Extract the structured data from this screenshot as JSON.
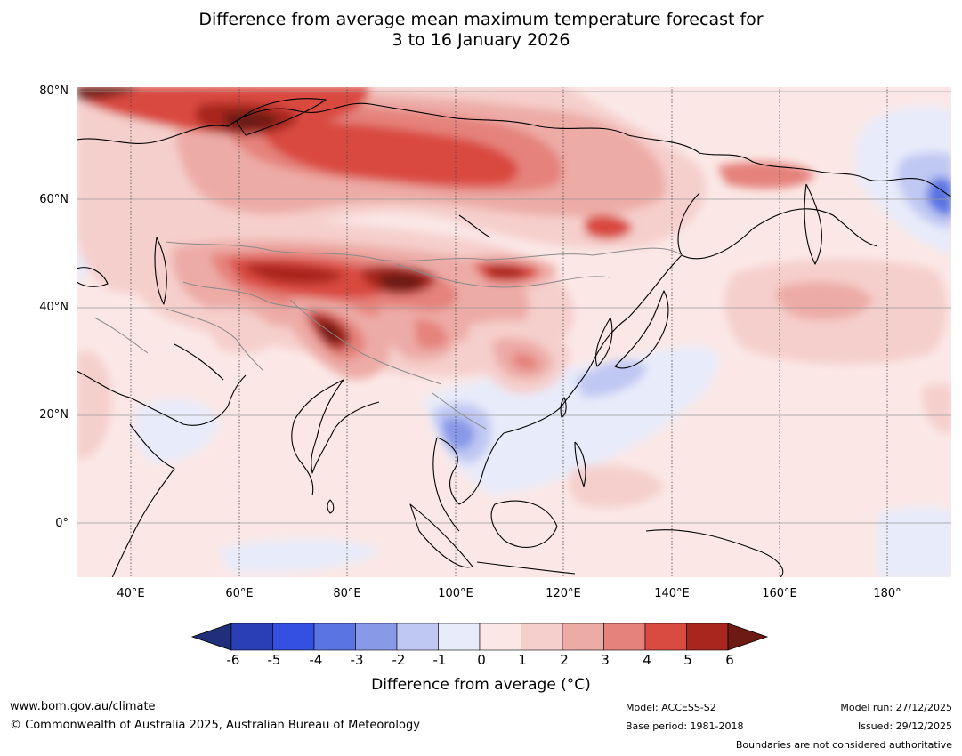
{
  "title": {
    "line1": "Difference from average mean maximum temperature forecast for",
    "line2": "3 to 16 January 2026"
  },
  "map": {
    "lat_labels": [
      "80°N",
      "60°N",
      "40°N",
      "20°N",
      "0°"
    ],
    "lon_labels": [
      "40°E",
      "60°E",
      "80°E",
      "100°E",
      "120°E",
      "140°E",
      "160°E",
      "180°"
    ],
    "lon_range": [
      30,
      192
    ],
    "lat_range": [
      -10,
      81
    ]
  },
  "colorbar": {
    "ticks": [
      "-6",
      "-5",
      "-4",
      "-3",
      "-2",
      "-1",
      "0",
      "1",
      "2",
      "3",
      "4",
      "5",
      "6"
    ],
    "label": "Difference from average (°C)",
    "colors": [
      "#1f2f7a",
      "#2a3fb5",
      "#3350e0",
      "#5a74e2",
      "#8899e8",
      "#bfc8f3",
      "#e8ebfa",
      "#fbe8e6",
      "#f5cfcc",
      "#edaba6",
      "#e5827c",
      "#d94a40",
      "#a9261f",
      "#6d1a14"
    ]
  },
  "footer": {
    "website": "www.bom.gov.au/climate",
    "copyright": "© Commonwealth of Australia 2025, Australian Bureau of Meteorology",
    "model": "Model: ACCESS-S2",
    "base_period": "Base period: 1981-2018",
    "model_run": "Model run: 27/12/2025",
    "issued": "Issued: 29/12/2025",
    "boundaries": "Boundaries are not considered authoritative"
  }
}
